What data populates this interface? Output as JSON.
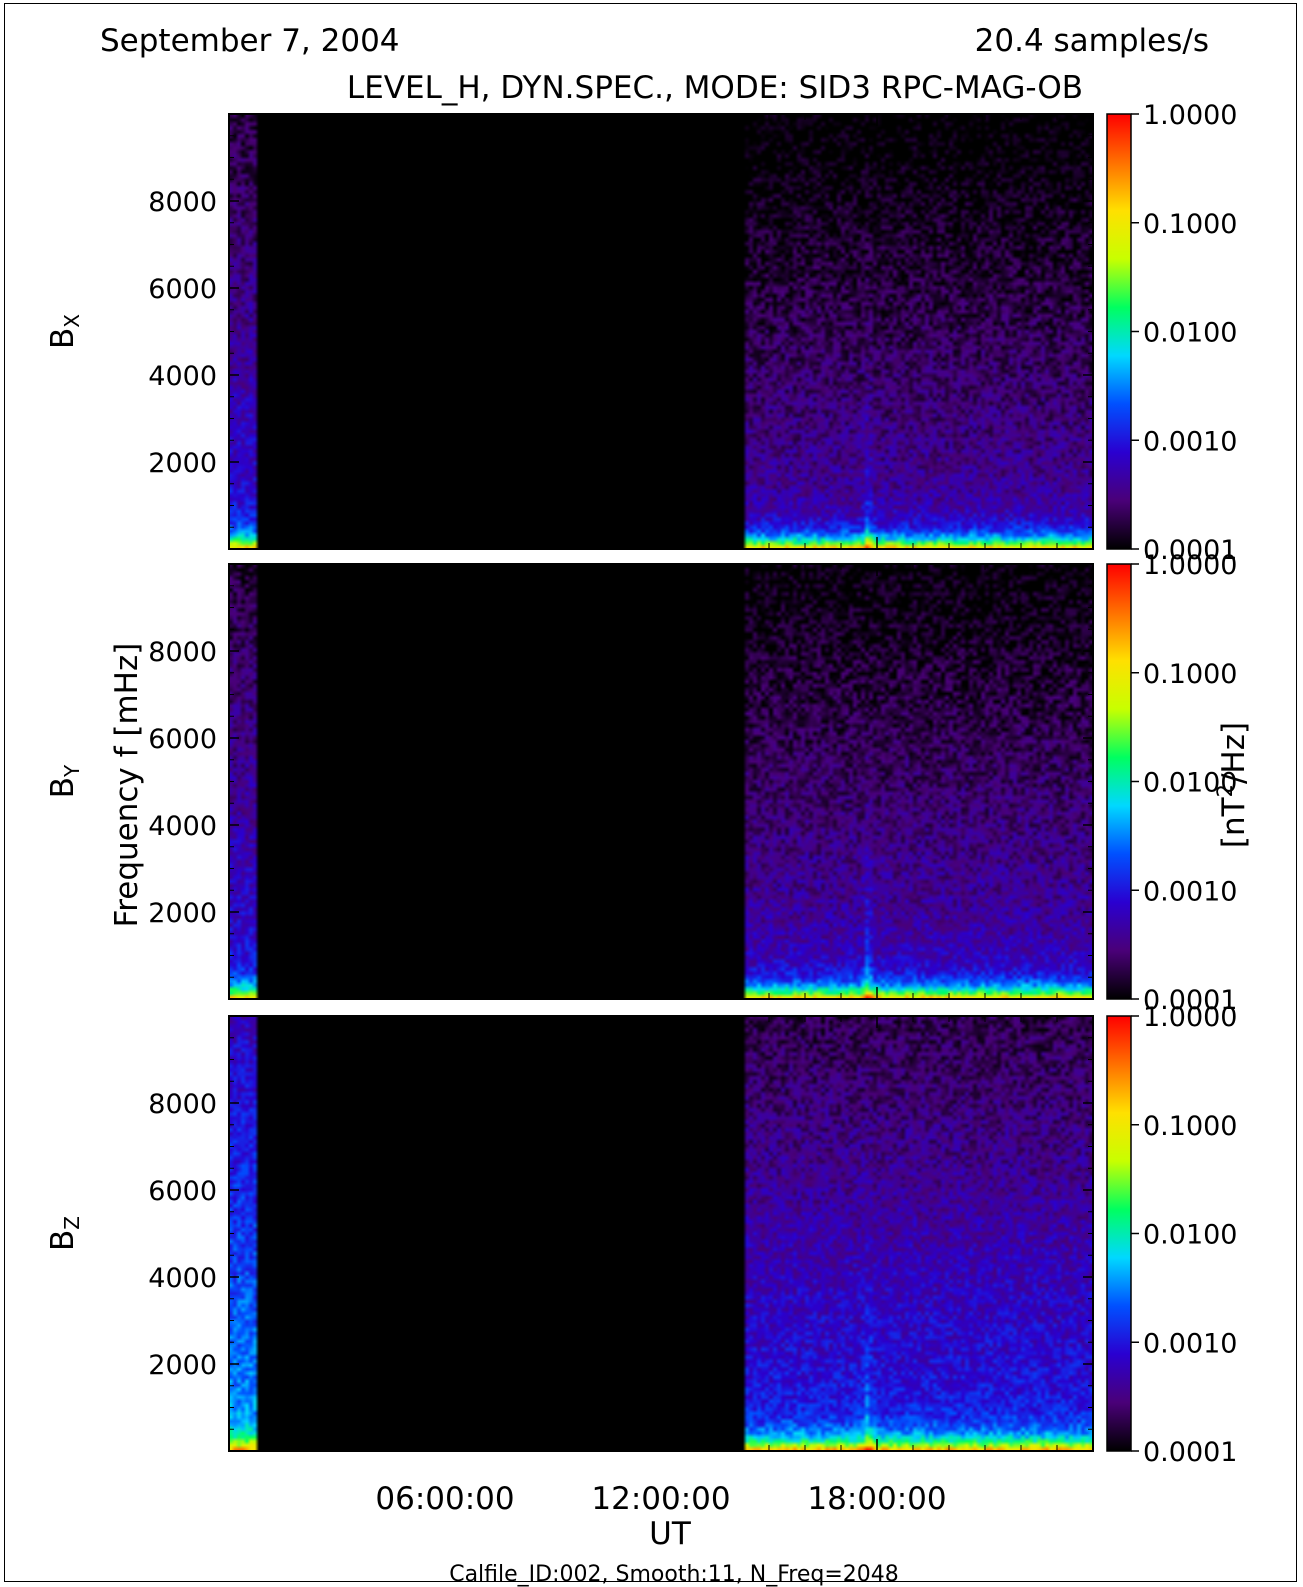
{
  "header": {
    "date": "September 7, 2004",
    "rate": "20.4 samples/s",
    "title": "LEVEL_H, DYN.SPEC., MODE: SID3 RPC-MAG-OB"
  },
  "footer": {
    "calfile": "Calfile_ID:002, Smooth:11, N_Freq=2048"
  },
  "colors": {
    "no_data": "#000000",
    "colormap": [
      "#000000",
      "#4a0078",
      "#2a00d0",
      "#0050ff",
      "#00d8ff",
      "#00ff60",
      "#c8ff00",
      "#ffe000",
      "#ff7000",
      "#ff0000"
    ]
  },
  "chart_data": {
    "type": "heatmap",
    "xlabel": "UT",
    "ylabel": "Frequency f [mHz]",
    "colorbar_label": "[nT²/Hz]",
    "colorbar_label_parts": {
      "prefix": "[nT",
      "sup": "2",
      "suffix": "/Hz]"
    },
    "x_unit": "hours UT",
    "x_range": [
      0,
      24
    ],
    "x_tick_labels": [
      {
        "hour": 6,
        "label": "06:00:00"
      },
      {
        "hour": 12,
        "label": "12:00:00"
      },
      {
        "hour": 18,
        "label": "18:00:00"
      }
    ],
    "x_minor_ticks_hours": [
      1,
      2,
      3,
      4,
      5,
      7,
      8,
      9,
      10,
      11,
      13,
      14,
      15,
      16,
      17,
      19,
      20,
      21,
      22,
      23
    ],
    "y_range": [
      0,
      10000
    ],
    "y_ticks": [
      2000,
      4000,
      6000,
      8000
    ],
    "y_tick_labels": [
      "2000",
      "4000",
      "6000",
      "8000"
    ],
    "y_minor_step": 500,
    "colorbar_scale": "log",
    "colorbar_range": [
      0.0001,
      1.0
    ],
    "colorbar_ticks": [
      {
        "value": 1.0,
        "label": "1.0000"
      },
      {
        "value": 0.1,
        "label": "0.1000"
      },
      {
        "value": 0.01,
        "label": "0.0100"
      },
      {
        "value": 0.001,
        "label": "0.0010"
      },
      {
        "value": 0.0001,
        "label": "0.0001"
      }
    ],
    "data_intervals_hours": [
      [
        0.0,
        0.75
      ],
      [
        14.3,
        24.0
      ]
    ],
    "panels": [
      {
        "component": "B",
        "subscript": "X",
        "background_level": 0.0005,
        "low_freq_level": 0.3,
        "early_level": 0.001,
        "colorbar_label_shown": false
      },
      {
        "component": "B",
        "subscript": "Y",
        "background_level": 0.0006,
        "low_freq_level": 0.3,
        "early_level": 0.001,
        "colorbar_label_shown": true
      },
      {
        "component": "B",
        "subscript": "Z",
        "background_level": 0.0012,
        "low_freq_level": 0.4,
        "early_level": 0.004,
        "colorbar_label_shown": false
      }
    ]
  }
}
